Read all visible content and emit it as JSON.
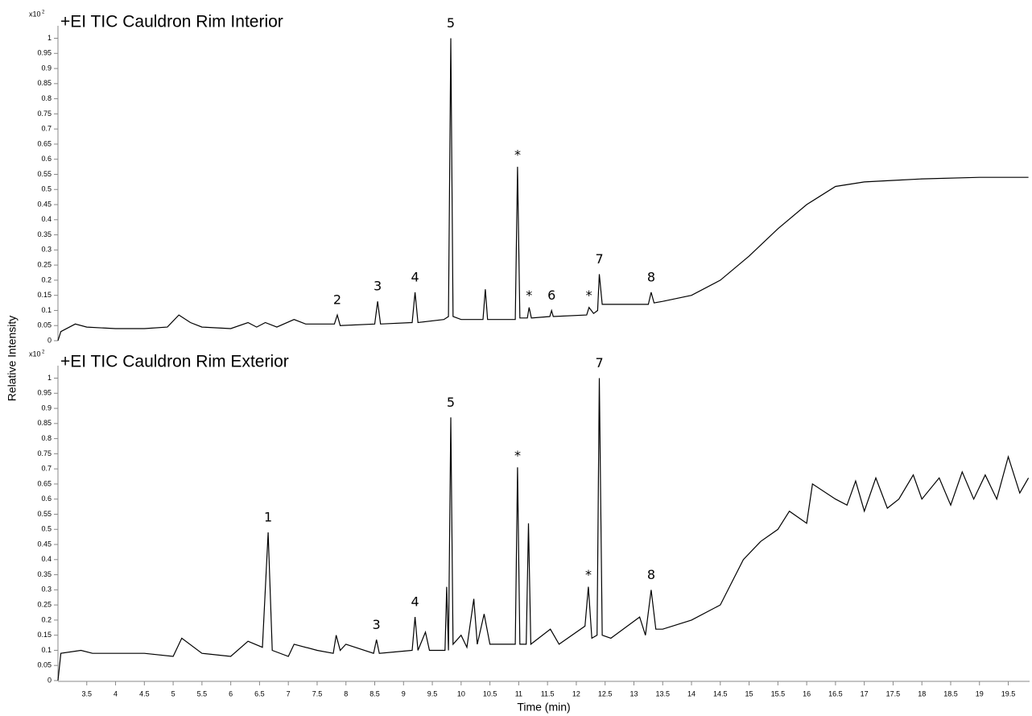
{
  "y_label": "Relative Intensity",
  "chart_data": [
    {
      "type": "line",
      "title": "+EI TIC Cauldron Rim Interior",
      "y_multiplier": "x10",
      "y_exponent": "2",
      "xlim": [
        3,
        19.87
      ],
      "ylim": [
        0,
        1.02
      ],
      "yticks": [
        0,
        0.05,
        0.1,
        0.15,
        0.2,
        0.25,
        0.3,
        0.35,
        0.4,
        0.45,
        0.5,
        0.55,
        0.6,
        0.65,
        0.7,
        0.75,
        0.8,
        0.85,
        0.9,
        0.95,
        1
      ],
      "x": [
        3.0,
        3.05,
        3.3,
        3.5,
        4.0,
        4.5,
        4.9,
        5.1,
        5.3,
        5.5,
        6.0,
        6.3,
        6.45,
        6.6,
        6.8,
        7.1,
        7.3,
        7.8,
        7.85,
        7.9,
        8.5,
        8.55,
        8.6,
        9.15,
        9.2,
        9.25,
        9.7,
        9.78,
        9.82,
        9.86,
        10.0,
        10.38,
        10.42,
        10.46,
        10.94,
        10.98,
        11.02,
        11.15,
        11.18,
        11.22,
        11.54,
        11.57,
        11.6,
        12.18,
        12.22,
        12.3,
        12.37,
        12.4,
        12.45,
        13.25,
        13.3,
        13.35,
        13.5,
        14,
        14.5,
        15,
        15.5,
        16,
        16.5,
        17,
        17.5,
        18,
        19,
        19.85
      ],
      "series": [
        {
          "color": "#000000",
          "values": [
            0,
            0.03,
            0.055,
            0.045,
            0.04,
            0.04,
            0.045,
            0.085,
            0.06,
            0.045,
            0.04,
            0.06,
            0.045,
            0.06,
            0.045,
            0.07,
            0.055,
            0.055,
            0.085,
            0.05,
            0.055,
            0.13,
            0.055,
            0.06,
            0.16,
            0.06,
            0.07,
            0.08,
            1.0,
            0.08,
            0.07,
            0.07,
            0.17,
            0.07,
            0.07,
            0.575,
            0.075,
            0.075,
            0.11,
            0.075,
            0.08,
            0.1,
            0.08,
            0.085,
            0.11,
            0.09,
            0.1,
            0.22,
            0.12,
            0.12,
            0.16,
            0.125,
            0.13,
            0.15,
            0.2,
            0.28,
            0.37,
            0.45,
            0.51,
            0.525,
            0.53,
            0.535,
            0.54,
            0.54
          ]
        }
      ],
      "annotations": [
        {
          "text": "2",
          "x": 7.85,
          "y": 0.085
        },
        {
          "text": "3",
          "x": 8.55,
          "y": 0.13
        },
        {
          "text": "4",
          "x": 9.2,
          "y": 0.16
        },
        {
          "text": "5",
          "x": 9.82,
          "y": 1.0
        },
        {
          "text": "*",
          "x": 10.98,
          "y": 0.575
        },
        {
          "text": "*",
          "x": 11.18,
          "y": 0.11
        },
        {
          "text": "6",
          "x": 11.57,
          "y": 0.1
        },
        {
          "text": "*",
          "x": 12.22,
          "y": 0.11
        },
        {
          "text": "7",
          "x": 12.4,
          "y": 0.22
        },
        {
          "text": "8",
          "x": 13.3,
          "y": 0.16
        }
      ]
    },
    {
      "type": "line",
      "title": "+EI TIC Cauldron Rim Exterior",
      "y_multiplier": "x10",
      "y_exponent": "2",
      "x_label": "Time (min)",
      "xlim": [
        3,
        19.87
      ],
      "ylim": [
        0,
        1.02
      ],
      "xticks": [
        3.5,
        4,
        4.5,
        5,
        5.5,
        6,
        6.5,
        7,
        7.5,
        8,
        8.5,
        9,
        9.5,
        10,
        10.5,
        11,
        11.5,
        12,
        12.5,
        13,
        13.5,
        14,
        14.5,
        15,
        15.5,
        16,
        16.5,
        17,
        17.5,
        18,
        18.5,
        19,
        19.5
      ],
      "yticks": [
        0,
        0.05,
        0.1,
        0.15,
        0.2,
        0.25,
        0.3,
        0.35,
        0.4,
        0.45,
        0.5,
        0.55,
        0.6,
        0.65,
        0.7,
        0.75,
        0.8,
        0.85,
        0.9,
        0.95,
        1
      ],
      "x": [
        3.0,
        3.05,
        3.4,
        3.6,
        4.5,
        5.0,
        5.15,
        5.5,
        6.0,
        6.3,
        6.55,
        6.65,
        6.72,
        7.0,
        7.1,
        7.5,
        7.78,
        7.83,
        7.9,
        8.0,
        8.48,
        8.53,
        8.58,
        9.15,
        9.2,
        9.25,
        9.38,
        9.45,
        9.72,
        9.75,
        9.78,
        9.82,
        9.86,
        10.0,
        10.1,
        10.22,
        10.28,
        10.4,
        10.5,
        10.94,
        10.98,
        11.02,
        11.13,
        11.17,
        11.21,
        11.55,
        11.7,
        12.15,
        12.21,
        12.27,
        12.36,
        12.4,
        12.45,
        12.6,
        13.1,
        13.2,
        13.3,
        13.38,
        13.5,
        14,
        14.5,
        14.9,
        15.2,
        15.5,
        15.7,
        16.0,
        16.1,
        16.5,
        16.7,
        16.85,
        17.0,
        17.2,
        17.4,
        17.6,
        17.85,
        18.0,
        18.3,
        18.5,
        18.7,
        18.9,
        19.1,
        19.3,
        19.5,
        19.7,
        19.85
      ],
      "series": [
        {
          "color": "#000000",
          "values": [
            0,
            0.09,
            0.1,
            0.09,
            0.09,
            0.08,
            0.14,
            0.09,
            0.08,
            0.13,
            0.11,
            0.49,
            0.1,
            0.08,
            0.12,
            0.1,
            0.09,
            0.15,
            0.1,
            0.12,
            0.09,
            0.135,
            0.09,
            0.1,
            0.21,
            0.1,
            0.16,
            0.1,
            0.1,
            0.31,
            0.1,
            0.87,
            0.12,
            0.15,
            0.11,
            0.27,
            0.12,
            0.22,
            0.12,
            0.12,
            0.705,
            0.12,
            0.12,
            0.52,
            0.12,
            0.17,
            0.12,
            0.18,
            0.31,
            0.14,
            0.15,
            1.0,
            0.15,
            0.14,
            0.21,
            0.15,
            0.3,
            0.17,
            0.17,
            0.2,
            0.25,
            0.4,
            0.46,
            0.5,
            0.56,
            0.52,
            0.65,
            0.6,
            0.58,
            0.66,
            0.56,
            0.67,
            0.57,
            0.6,
            0.68,
            0.6,
            0.67,
            0.58,
            0.69,
            0.6,
            0.68,
            0.6,
            0.74,
            0.62,
            0.67
          ]
        }
      ],
      "annotations": [
        {
          "text": "1",
          "x": 6.65,
          "y": 0.49
        },
        {
          "text": "3",
          "x": 8.53,
          "y": 0.135
        },
        {
          "text": "4",
          "x": 9.2,
          "y": 0.21
        },
        {
          "text": "5",
          "x": 9.82,
          "y": 0.87
        },
        {
          "text": "*",
          "x": 10.98,
          "y": 0.705
        },
        {
          "text": "*",
          "x": 12.21,
          "y": 0.31
        },
        {
          "text": "7",
          "x": 12.4,
          "y": 1.0
        },
        {
          "text": "8",
          "x": 13.3,
          "y": 0.3
        }
      ]
    }
  ]
}
